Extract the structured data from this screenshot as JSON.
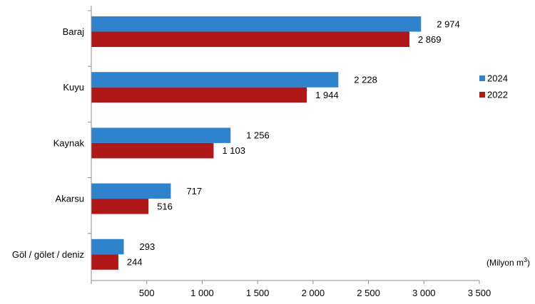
{
  "chart_data": {
    "type": "bar",
    "orientation": "horizontal",
    "categories": [
      "Baraj",
      "Kuyu",
      "Kaynak",
      "Akarsu",
      "Göl / gölet / deniz"
    ],
    "series": [
      {
        "name": "2024",
        "color": "#2e83cc",
        "values": [
          2974,
          2228,
          1256,
          717,
          293
        ],
        "labels": [
          "2 974",
          "2 228",
          "1 256",
          "717",
          "293"
        ]
      },
      {
        "name": "2022",
        "color": "#b01818",
        "values": [
          2869,
          1944,
          1103,
          516,
          244
        ],
        "labels": [
          "2 869",
          "1 944",
          "1 103",
          "516",
          "244"
        ]
      }
    ],
    "xlim": [
      0,
      3500
    ],
    "xticks": [
      500,
      1000,
      1500,
      2000,
      2500,
      3000,
      3500
    ],
    "xtick_labels": [
      "500",
      "1 000",
      "1 500",
      "2 000",
      "2 500",
      "3 000",
      "3 500"
    ],
    "unit_label": "(Milyon m",
    "unit_sup": "3",
    "unit_close": ")",
    "legend_placement": "right",
    "grid": false
  }
}
